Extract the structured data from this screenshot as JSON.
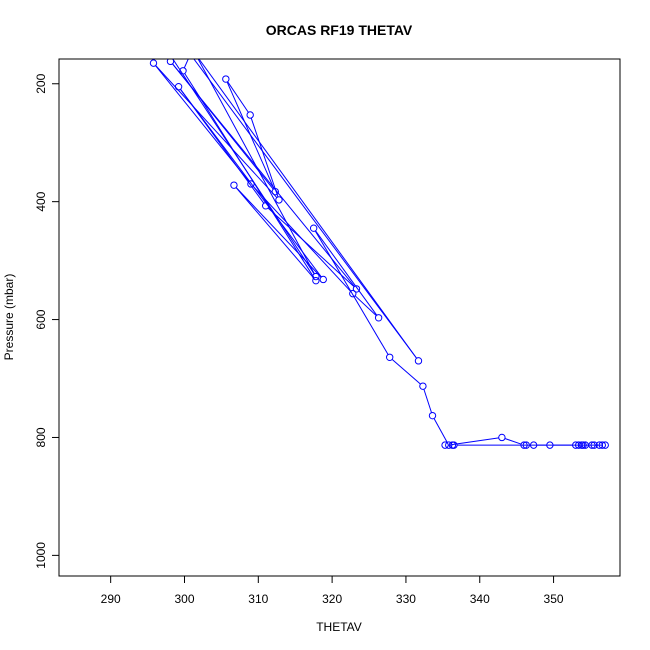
{
  "chart_data": {
    "type": "line",
    "title": "ORCAS RF19 THETAV",
    "xlabel": "THETAV",
    "ylabel": "Pressure (mbar)",
    "xlim": [
      283,
      359
    ],
    "ylim": [
      1035,
      158
    ],
    "y_reversed": true,
    "x_ticks": [
      290,
      300,
      310,
      320,
      330,
      340,
      350
    ],
    "y_ticks": [
      200,
      400,
      600,
      800,
      1000
    ],
    "grid": false,
    "legend": "none",
    "marker": "open-circle",
    "color": "#0000ff",
    "x": [
      301.0,
      298.0,
      317.8,
      301.5,
      331.7,
      300.8,
      299.8,
      317.8,
      306.7,
      318.8,
      299.2,
      311.0,
      323.3,
      298.1,
      312.3,
      305.6,
      308.9,
      312.8,
      295.8,
      309.0,
      322.8,
      326.3,
      317.5,
      327.8,
      332.3,
      333.6,
      335.8,
      343.0,
      346.0,
      346.3,
      347.3,
      349.5,
      353.0,
      353.4,
      353.8,
      354.0,
      354.3,
      355.2,
      355.5,
      356.2,
      356.6,
      357.0,
      336.5,
      335.3,
      336.3
    ],
    "y": [
      150,
      150,
      527,
      150,
      670,
      150,
      178,
      534,
      372,
      532,
      205,
      407,
      548,
      162,
      383,
      192,
      253,
      397,
      165,
      370,
      556,
      597,
      445,
      664,
      713,
      763,
      813,
      800,
      813,
      813,
      813,
      813,
      813,
      813,
      813,
      813,
      813,
      813,
      813,
      813,
      813,
      813,
      813,
      813,
      813
    ]
  }
}
